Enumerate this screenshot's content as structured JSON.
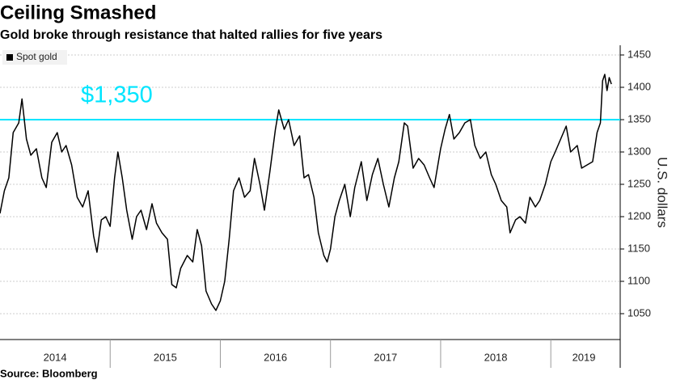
{
  "chart_data": {
    "type": "line",
    "title": "Ceiling Smashed",
    "subtitle": "Gold broke through resistance that halted rallies for five years",
    "source": "Source: Bloomberg",
    "y_axis_label": "U.S. dollars",
    "legend_position": "top-left",
    "grid": true,
    "xlim": [
      2014,
      2019.63
    ],
    "xticks": [
      {
        "value": 2014.5,
        "label": "2014"
      },
      {
        "value": 2015.5,
        "label": "2015"
      },
      {
        "value": 2016.5,
        "label": "2016"
      },
      {
        "value": 2017.5,
        "label": "2017"
      },
      {
        "value": 2018.5,
        "label": "2018"
      },
      {
        "value": 2019.3,
        "label": "2019"
      }
    ],
    "ylim": [
      1010,
      1465
    ],
    "yticks": [
      1050,
      1100,
      1150,
      1200,
      1250,
      1300,
      1350,
      1400,
      1450
    ],
    "reference_line": {
      "value": 1350,
      "label": "$1,350",
      "color": "#00e5ff"
    },
    "x": [
      2014.0,
      2014.04,
      2014.08,
      2014.12,
      2014.17,
      2014.2,
      2014.24,
      2014.28,
      2014.33,
      2014.38,
      2014.42,
      2014.47,
      2014.52,
      2014.56,
      2014.6,
      2014.65,
      2014.7,
      2014.75,
      2014.8,
      2014.85,
      2014.88,
      2014.92,
      2014.96,
      2015.0,
      2015.04,
      2015.07,
      2015.11,
      2015.15,
      2015.2,
      2015.24,
      2015.28,
      2015.33,
      2015.38,
      2015.42,
      2015.47,
      2015.52,
      2015.56,
      2015.6,
      2015.64,
      2015.7,
      2015.75,
      2015.79,
      2015.83,
      2015.87,
      2015.92,
      2015.96,
      2016.0,
      2016.04,
      2016.08,
      2016.12,
      2016.17,
      2016.22,
      2016.27,
      2016.31,
      2016.36,
      2016.4,
      2016.45,
      2016.5,
      2016.53,
      2016.58,
      2016.62,
      2016.67,
      2016.72,
      2016.76,
      2016.8,
      2016.85,
      2016.89,
      2016.94,
      2016.97,
      2017.0,
      2017.04,
      2017.08,
      2017.13,
      2017.18,
      2017.22,
      2017.28,
      2017.33,
      2017.38,
      2017.43,
      2017.48,
      2017.53,
      2017.58,
      2017.62,
      2017.67,
      2017.7,
      2017.75,
      2017.8,
      2017.85,
      2017.9,
      2017.94,
      2018.0,
      2018.04,
      2018.08,
      2018.12,
      2018.17,
      2018.22,
      2018.27,
      2018.31,
      2018.36,
      2018.41,
      2018.46,
      2018.5,
      2018.55,
      2018.6,
      2018.63,
      2018.68,
      2018.72,
      2018.77,
      2018.81,
      2018.86,
      2018.9,
      2018.95,
      2019.0,
      2019.04,
      2019.09,
      2019.14,
      2019.18,
      2019.24,
      2019.28,
      2019.33,
      2019.38,
      2019.42,
      2019.45,
      2019.47,
      2019.49,
      2019.51,
      2019.53,
      2019.55
    ],
    "series": [
      {
        "name": "Spot gold",
        "color": "#000000",
        "values": [
          1205,
          1240,
          1260,
          1330,
          1345,
          1382,
          1320,
          1295,
          1305,
          1260,
          1245,
          1315,
          1330,
          1300,
          1310,
          1280,
          1230,
          1215,
          1240,
          1170,
          1145,
          1195,
          1200,
          1185,
          1260,
          1300,
          1260,
          1210,
          1165,
          1200,
          1210,
          1180,
          1220,
          1190,
          1175,
          1165,
          1095,
          1090,
          1120,
          1140,
          1130,
          1180,
          1155,
          1085,
          1065,
          1055,
          1070,
          1100,
          1165,
          1240,
          1260,
          1230,
          1240,
          1290,
          1250,
          1210,
          1270,
          1335,
          1365,
          1335,
          1350,
          1310,
          1325,
          1260,
          1265,
          1230,
          1175,
          1140,
          1130,
          1150,
          1200,
          1225,
          1250,
          1200,
          1245,
          1285,
          1225,
          1265,
          1290,
          1250,
          1215,
          1260,
          1285,
          1345,
          1340,
          1275,
          1290,
          1280,
          1260,
          1245,
          1305,
          1335,
          1358,
          1320,
          1330,
          1345,
          1350,
          1310,
          1290,
          1300,
          1265,
          1250,
          1225,
          1215,
          1175,
          1195,
          1200,
          1190,
          1230,
          1215,
          1225,
          1250,
          1285,
          1300,
          1320,
          1340,
          1300,
          1310,
          1275,
          1280,
          1285,
          1330,
          1345,
          1410,
          1420,
          1395,
          1415,
          1405
        ]
      }
    ]
  }
}
